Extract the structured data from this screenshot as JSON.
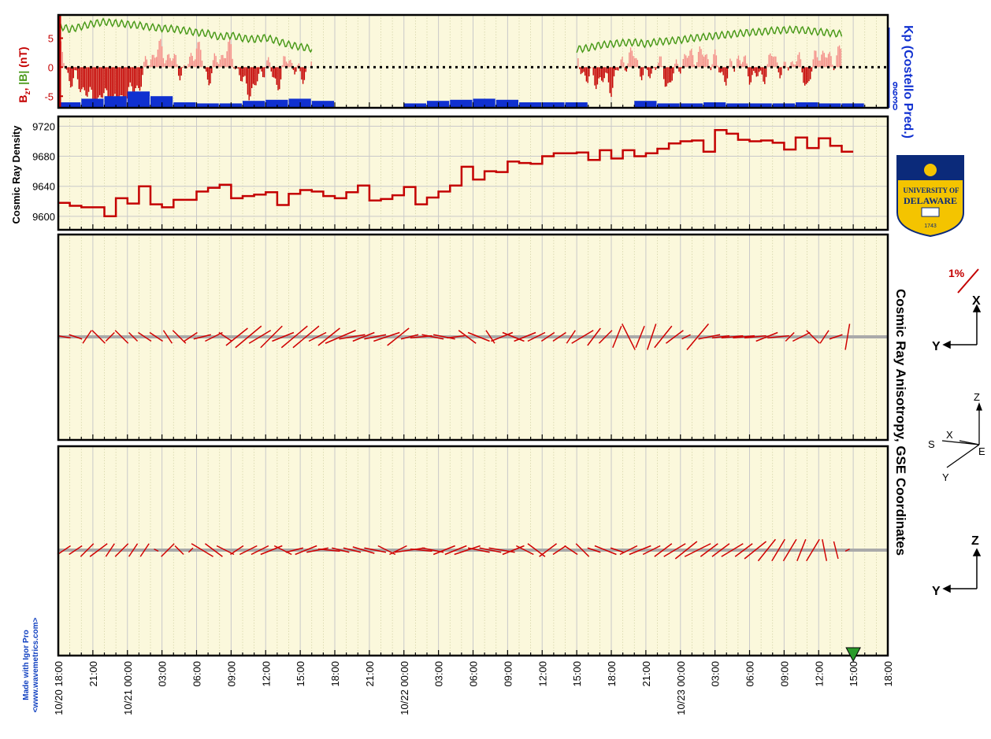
{
  "chart_data": [
    {
      "type": "line",
      "panel": "magnetic-field",
      "ylabel_parts": [
        "B",
        "z",
        ", ",
        "|B|",
        " (nT)"
      ],
      "ylabel_colors": {
        "bz": "#c40000",
        "bmag": "#4a9a1a"
      },
      "y_ticks": [
        "5",
        "0",
        "-5"
      ],
      "ylim": [
        -7,
        9
      ],
      "right_ylabel": "Kp (Costello Pred.)",
      "right_ticks": [
        "9",
        "6",
        "3",
        "0"
      ],
      "right_color": "#1030d0",
      "gaps_hours": [
        [
          22.5,
          30.0
        ],
        [
          45.5,
          48.5
        ]
      ],
      "series": [
        {
          "name": "|B|",
          "color": "#4a9a1a",
          "x_hours": [
            0,
            1,
            2,
            3,
            4,
            5,
            6,
            7,
            8,
            9,
            10,
            11,
            12,
            13,
            14,
            15,
            16,
            17,
            18,
            19,
            20,
            21,
            22,
            45,
            46,
            47,
            48,
            49,
            50,
            51,
            52,
            53,
            54,
            55,
            56,
            57,
            58,
            59,
            60,
            61,
            62,
            63,
            64,
            65,
            66,
            67,
            68
          ],
          "values": [
            7.2,
            6.5,
            7.0,
            7.5,
            7.8,
            7.6,
            7.4,
            7.2,
            6.9,
            6.7,
            6.6,
            6.3,
            6.0,
            5.8,
            5.2,
            5.5,
            5.0,
            4.8,
            5.1,
            4.5,
            3.9,
            3.5,
            3.2,
            3.1,
            3.3,
            3.8,
            4.0,
            4.2,
            4.3,
            4.0,
            4.4,
            4.5,
            4.7,
            5.0,
            5.2,
            5.4,
            5.6,
            5.8,
            6.0,
            6.1,
            6.3,
            6.4,
            6.5,
            6.3,
            6.1,
            5.9,
            5.7
          ]
        },
        {
          "name": "Bz",
          "color": "#c40000",
          "style": "filled-bars",
          "x_hours": [
            0,
            1,
            2,
            3,
            4,
            5,
            6,
            7,
            8,
            9,
            10,
            11,
            12,
            13,
            14,
            15,
            16,
            17,
            18,
            19,
            20,
            21,
            22,
            45,
            46,
            47,
            48,
            49,
            50,
            51,
            52,
            53,
            54,
            55,
            56,
            57,
            58,
            59,
            60,
            61,
            62,
            63,
            64,
            65,
            66,
            67,
            68
          ],
          "values": [
            4,
            -2,
            -3,
            -6,
            -5,
            -6,
            -5,
            -3,
            2,
            3,
            1,
            -1,
            4,
            -2,
            2,
            3,
            -3,
            -4,
            1,
            -3,
            2,
            -2,
            1,
            1,
            -2,
            -2,
            -3,
            1,
            2,
            -2,
            1,
            -3,
            1,
            2,
            2,
            1,
            -2,
            2,
            -1,
            -2,
            2,
            -1,
            2,
            -3,
            3,
            1,
            3
          ]
        },
        {
          "name": "Kp",
          "color": "#1030d0",
          "style": "bars",
          "x_hours": [
            0,
            2,
            4,
            6,
            8,
            10,
            12,
            14,
            16,
            18,
            20,
            22,
            24,
            26,
            28,
            30,
            32,
            34,
            36,
            38,
            40,
            42,
            44,
            46,
            48,
            50,
            52,
            54,
            56,
            58,
            60,
            62,
            64,
            66,
            68
          ],
          "values": [
            1.3,
            2.3,
            3.0,
            4.3,
            3.0,
            1.3,
            1.0,
            1.0,
            1.7,
            2.0,
            2.3,
            1.7,
            1.7,
            1.0,
            0.7,
            1.0,
            1.7,
            2.0,
            2.3,
            2.0,
            1.3,
            1.3,
            1.3,
            1.0,
            1.3,
            1.7,
            1.0,
            1.0,
            1.3,
            1.0,
            1.0,
            1.0,
            1.3,
            1.0,
            1.0
          ]
        }
      ]
    },
    {
      "type": "line",
      "panel": "cosmic-ray-density",
      "ylabel": "Cosmic Ray Density",
      "y_ticks": [
        9720,
        9680,
        9640,
        9600
      ],
      "ylim": [
        9582,
        9733
      ],
      "color": "#c40000",
      "step": true,
      "x_hours": [
        0,
        1,
        2,
        3,
        4,
        5,
        6,
        7,
        8,
        9,
        10,
        11,
        12,
        13,
        14,
        15,
        16,
        17,
        18,
        19,
        20,
        21,
        22,
        23,
        24,
        25,
        26,
        27,
        28,
        29,
        30,
        31,
        32,
        33,
        34,
        35,
        36,
        37,
        38,
        39,
        40,
        41,
        42,
        43,
        44,
        45,
        46,
        47,
        48,
        49,
        50,
        51,
        52,
        53,
        54,
        55,
        56,
        57,
        58,
        59,
        60,
        61,
        62,
        63,
        64,
        65,
        66,
        67,
        68
      ],
      "values": [
        9618,
        9614,
        9612,
        9612,
        9600,
        9624,
        9617,
        9640,
        9616,
        9612,
        9622,
        9622,
        9633,
        9638,
        9642,
        9624,
        9627,
        9629,
        9632,
        9615,
        9630,
        9635,
        9633,
        9627,
        9624,
        9632,
        9641,
        9621,
        9623,
        9628,
        9639,
        9616,
        9625,
        9633,
        9641,
        9666,
        9649,
        9660,
        9659,
        9673,
        9671,
        9670,
        9680,
        9684,
        9684,
        9685,
        9675,
        9688,
        9677,
        9688,
        9680,
        9684,
        9690,
        9697,
        9700,
        9701,
        9686,
        9715,
        9710,
        9702,
        9700,
        9701,
        9698,
        9689,
        9705,
        9691,
        9704,
        9694,
        9686
      ]
    },
    {
      "type": "vector",
      "panel": "anisotropy-xy",
      "right_title": "Cosmic Ray Anisotropy, GSE Coordinates",
      "scale_label": "1%",
      "axis_labels": [
        "X",
        "Y"
      ],
      "color": "#d00000",
      "x_hours": [
        0,
        1,
        2,
        3,
        4,
        5,
        6,
        7,
        8,
        9,
        10,
        11,
        12,
        13,
        14,
        15,
        16,
        17,
        18,
        19,
        20,
        21,
        22,
        23,
        24,
        25,
        26,
        27,
        28,
        29,
        30,
        31,
        32,
        33,
        34,
        35,
        36,
        37,
        38,
        39,
        40,
        41,
        42,
        43,
        44,
        45,
        46,
        47,
        48,
        49,
        50,
        51,
        52,
        53,
        54,
        55,
        56,
        57,
        58,
        59,
        60,
        61,
        62,
        63,
        64,
        65,
        66,
        67,
        68
      ],
      "u": [
        -0.3,
        -0.3,
        -0.2,
        0.3,
        -0.2,
        0.3,
        -0.2,
        0.3,
        0.3,
        -0.2,
        0.3,
        0.3,
        0.4,
        0.4,
        -0.3,
        0.5,
        0.6,
        0.5,
        0.5,
        -0.5,
        0.6,
        0.6,
        -0.4,
        0.5,
        0.7,
        0.6,
        0.5,
        0.5,
        0.6,
        -0.5,
        0.4,
        0.5,
        0.5,
        0.5,
        0.4,
        0.4,
        0.5,
        -0.2,
        0.5,
        0.5,
        0.5,
        0.4,
        0.3,
        0.3,
        0.2,
        0.5,
        0.3,
        0.3,
        0.2,
        -0.3,
        0.2,
        0.2,
        0.4,
        0.4,
        -0.2,
        0.5,
        0.5,
        0.4,
        0.5,
        0.5,
        0.5,
        -0.5,
        0.5,
        0.2,
        0.4,
        -0.3,
        0.2,
        0.3,
        -0.1
      ],
      "v": [
        0.05,
        0.1,
        -0.3,
        -0.3,
        -0.2,
        -0.3,
        0.2,
        -0.2,
        -0.2,
        0.3,
        -0.3,
        0.2,
        0.1,
        0.2,
        0.2,
        0.4,
        0.5,
        0.3,
        0.5,
        -0.2,
        0.5,
        0.5,
        -0.2,
        0.4,
        0.3,
        0.1,
        0.2,
        0.1,
        0.2,
        -0.4,
        0.1,
        0.05,
        -0.1,
        -0.1,
        0.05,
        -0.3,
        -0.2,
        0.3,
        0.2,
        -0.2,
        0.2,
        0.2,
        0.2,
        0.2,
        0.3,
        0.3,
        0.4,
        0.3,
        0.5,
        0.6,
        0.5,
        0.6,
        0.5,
        0.3,
        -0.1,
        0.6,
        0.1,
        0.05,
        0.05,
        0.05,
        0.05,
        -0.2,
        0.05,
        0.2,
        0.2,
        0.3,
        0.3,
        0.1,
        -0.6
      ]
    },
    {
      "type": "vector",
      "panel": "anisotropy-zy",
      "axis_labels": [
        "Z",
        "Y"
      ],
      "orientation_labels": [
        "Z",
        "X",
        "S",
        "E",
        "Y"
      ],
      "color": "#d00000",
      "x_hours": [
        0,
        1,
        2,
        3,
        4,
        5,
        6,
        7,
        8,
        9,
        10,
        11,
        12,
        13,
        14,
        15,
        16,
        17,
        18,
        19,
        20,
        21,
        22,
        23,
        24,
        25,
        26,
        27,
        28,
        29,
        30,
        31,
        32,
        33,
        34,
        35,
        36,
        37,
        38,
        39,
        40,
        41,
        42,
        43,
        44,
        45,
        46,
        47,
        48,
        49,
        50,
        51,
        52,
        53,
        54,
        55,
        56,
        57,
        58,
        59,
        60,
        61,
        62,
        63,
        64,
        65,
        66,
        67,
        68
      ],
      "u": [
        0.3,
        0.3,
        0.3,
        0.4,
        0.2,
        0.3,
        0.2,
        0.2,
        -0.1,
        0.3,
        0.2,
        0.1,
        0.5,
        0.4,
        0.4,
        0.3,
        0.4,
        0.4,
        0.5,
        -0.4,
        0.4,
        0.5,
        0.5,
        0.5,
        0.4,
        0.4,
        0.5,
        0.5,
        0.4,
        0.4,
        0.7,
        0.5,
        0.5,
        0.5,
        0.5,
        0.6,
        0.5,
        0.5,
        0.6,
        0.5,
        0.4,
        0.4,
        0.4,
        0.3,
        0.3,
        0.3,
        0.3,
        0.5,
        0.3,
        0.4,
        0.5,
        0.4,
        0.4,
        0.5,
        0.5,
        0.6,
        0.4,
        0.4,
        0.5,
        0.4,
        0.5,
        0.4,
        0.3,
        0.3,
        0.2,
        0.3,
        -0.1,
        -0.1,
        0.1
      ],
      "v": [
        0.2,
        0.2,
        0.3,
        0.3,
        0.3,
        0.3,
        0.3,
        0.3,
        0.05,
        0.3,
        -0.2,
        0.1,
        -0.3,
        -0.3,
        -0.2,
        0.2,
        0.2,
        0.2,
        0.2,
        0.2,
        0.1,
        0.2,
        0.1,
        -0.05,
        -0.1,
        -0.1,
        -0.15,
        -0.1,
        -0.2,
        0.2,
        0.1,
        -0.05,
        -0.1,
        0.2,
        0.2,
        0.2,
        -0.1,
        -0.1,
        -0.1,
        0.2,
        -0.2,
        -0.3,
        0.3,
        0.2,
        -0.2,
        -0.3,
        -0.1,
        -0.2,
        -0.1,
        0.2,
        0.2,
        0.2,
        0.3,
        0.3,
        0.4,
        0.3,
        0.3,
        0.3,
        0.3,
        0.3,
        0.4,
        0.5,
        0.5,
        0.5,
        0.5,
        0.5,
        0.5,
        0.4,
        0.05
      ]
    }
  ],
  "x_axis": {
    "tick_labels": [
      "10/20 18:00",
      "21:00",
      "10/21 00:00",
      "03:00",
      "06:00",
      "09:00",
      "12:00",
      "15:00",
      "18:00",
      "21:00",
      "10/22 00:00",
      "03:00",
      "06:00",
      "09:00",
      "12:00",
      "15:00",
      "18:00",
      "21:00",
      "10/23 00:00",
      "03:00",
      "06:00",
      "09:00",
      "12:00",
      "15:00",
      "18:00"
    ],
    "tick_hours": [
      0,
      3,
      6,
      9,
      12,
      15,
      18,
      21,
      24,
      27,
      30,
      33,
      36,
      39,
      42,
      45,
      48,
      51,
      54,
      57,
      60,
      63,
      66,
      69,
      72
    ],
    "range_hours": [
      0,
      72
    ],
    "current_time_hours": 69
  },
  "plot_background": "#fbf8dc",
  "logo": {
    "line1": "UNIVERSITY OF",
    "line2": "DELAWARE",
    "year": "1743"
  },
  "credit": {
    "line1": "Made with Igor Pro",
    "line2": "<www.wavemetrics.com>"
  }
}
